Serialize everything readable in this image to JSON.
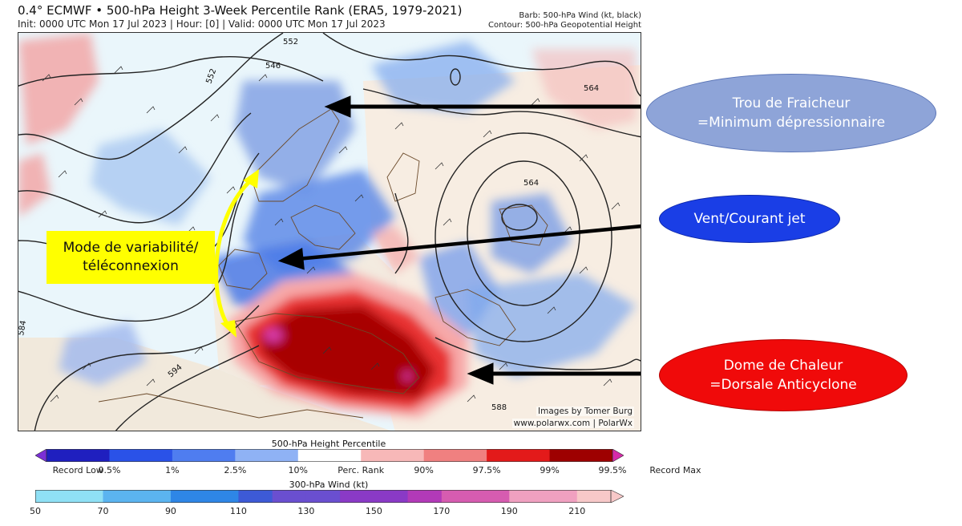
{
  "header": {
    "title": "0.4° ECMWF • 500-hPa Height 3-Week Percentile Rank (ERA5, 1979-2021)",
    "subtitle": "Init: 0000 UTC Mon 17 Jul 2023 | Hour: [0] | Valid: 0000 UTC Mon 17 Jul 2023",
    "legend_barb": "Barb: 500-hPa Wind (kt, black)",
    "legend_contour": "Contour: 500-hPa Geopotential Height"
  },
  "map": {
    "contour_labels": [
      "546",
      "552",
      "552",
      "564",
      "564",
      "584",
      "594",
      "588"
    ],
    "credit_line1": "Images by Tomer Burg",
    "credit_line2": "www.polarwx.com | PolarWx"
  },
  "annotations": {
    "cold_pool": {
      "line1": "Trou de Fraicheur",
      "line2": "=Minimum dépressionnaire",
      "color": "#8ea4d8"
    },
    "jet": {
      "line1": "Vent/Courant jet",
      "color": "#1a3ee6"
    },
    "heat_dome": {
      "line1": "Dome de Chaleur",
      "line2": "=Dorsale Anticyclone",
      "color": "#f00a0a"
    },
    "mode": {
      "line1": "Mode de variabilité/",
      "line2": "téléconnexion",
      "color": "#ffff00"
    }
  },
  "colorbar_percentile": {
    "title": "500-hPa Height Percentile",
    "labels": [
      "Record Low",
      "0.5%",
      "1%",
      "2.5%",
      "10%",
      "Perc. Rank",
      "90%",
      "97.5%",
      "99%",
      "99.5%",
      "Record Max"
    ],
    "colors": [
      "#7b2fd6",
      "#1f1fbf",
      "#2a52e8",
      "#4f7df0",
      "#8fb2f5",
      "#ffffff",
      "#f7b8b8",
      "#f08080",
      "#e31a1a",
      "#9e0000",
      "#d62aa8"
    ]
  },
  "colorbar_wind": {
    "title": "300-hPa Wind (kt)",
    "labels": [
      "50",
      "70",
      "90",
      "110",
      "130",
      "150",
      "170",
      "190",
      "210"
    ],
    "colors": [
      "#8fe0f5",
      "#5bb4f0",
      "#2e86e6",
      "#3d5ad6",
      "#6a4fd0",
      "#8a3ac6",
      "#b23ab8",
      "#d65cb0",
      "#f0a0c0",
      "#f7c8c8"
    ]
  }
}
